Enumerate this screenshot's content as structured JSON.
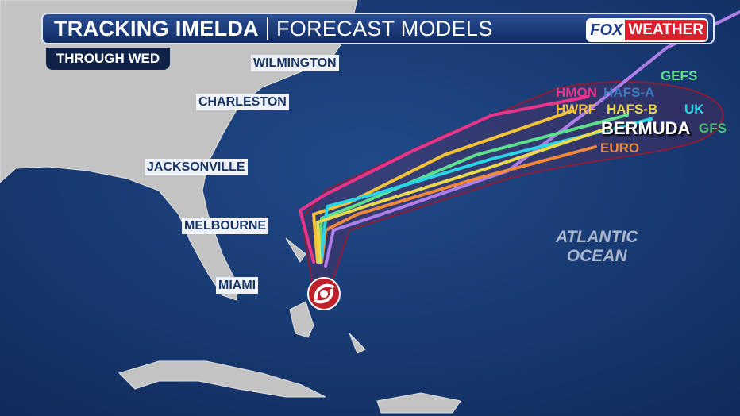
{
  "header": {
    "title": "TRACKING IMELDA",
    "subtitle": "FORECAST MODELS",
    "logo_left": "FOX",
    "logo_right": "WEATHER"
  },
  "timeframe": "THROUGH  WED",
  "cities": [
    "WILMINGTON",
    "CHARLESTON",
    "JACKSONVILLE",
    "MELBOURNE",
    "MIAMI"
  ],
  "bermuda": "BERMUDA",
  "ocean_label": [
    "ATLANTIC",
    "OCEAN"
  ],
  "models": [
    {
      "name": "HMON",
      "color": "#e8358c"
    },
    {
      "name": "HAFS-A",
      "color": "#3b7bc4"
    },
    {
      "name": "GEFS",
      "color": "#5ee08c"
    },
    {
      "name": "HWRF",
      "color": "#f4c236"
    },
    {
      "name": "HAFS-B",
      "color": "#e8d850"
    },
    {
      "name": "UK",
      "color": "#2ad6e6"
    },
    {
      "name": "GFS",
      "color": "#4cc070"
    },
    {
      "name": "EURO",
      "color": "#f08a3a"
    }
  ],
  "colors": {
    "ocean": "#1b3a72",
    "land": "#c3c3c3",
    "cone": "#8a1e3a",
    "storm": "#c0202a",
    "extra_track": "#b07ee8"
  }
}
